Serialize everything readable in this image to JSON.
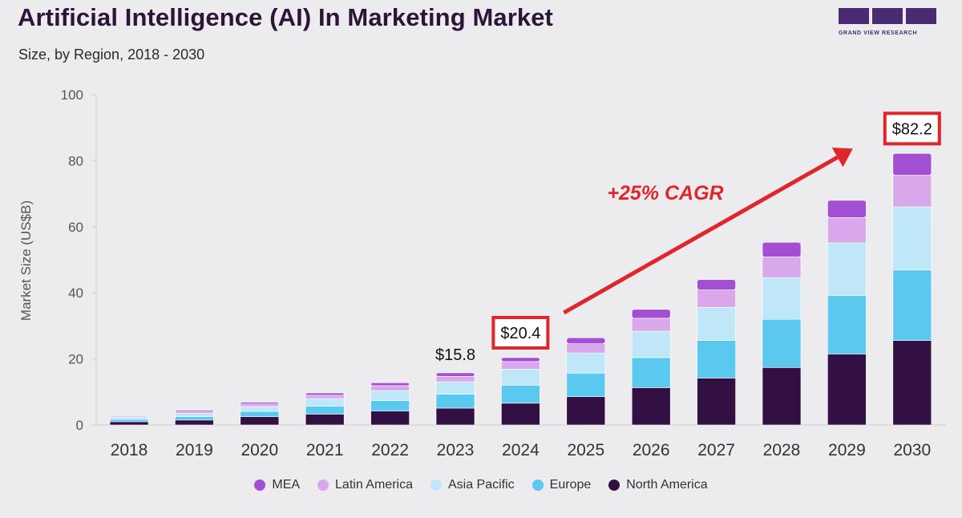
{
  "header": {
    "title": "Artificial Intelligence (AI) In Marketing Market",
    "subtitle": "Size, by Region, 2018 - 2030"
  },
  "logo": {
    "text": "GRAND VIEW RESEARCH",
    "color": "#4a2a73"
  },
  "chart_data": {
    "type": "bar",
    "stacked": true,
    "ylabel": "Market Size (US$B)",
    "ylim": [
      0,
      100
    ],
    "yticks": [
      0,
      20,
      40,
      60,
      80,
      100
    ],
    "grid": false,
    "legend_position": "bottom",
    "categories": [
      "2018",
      "2019",
      "2020",
      "2021",
      "2022",
      "2023",
      "2024",
      "2025",
      "2026",
      "2027",
      "2028",
      "2029",
      "2030"
    ],
    "series": [
      {
        "name": "North America",
        "color": "#321043",
        "values": [
          1.0,
          1.5,
          2.5,
          3.3,
          4.2,
          5.1,
          6.6,
          8.6,
          11.3,
          14.2,
          17.4,
          21.5,
          25.6
        ]
      },
      {
        "name": "Europe",
        "color": "#5bc8f0",
        "values": [
          0.7,
          1.0,
          1.6,
          2.4,
          3.2,
          4.2,
          5.4,
          7.1,
          9.1,
          11.4,
          14.6,
          17.7,
          21.3
        ]
      },
      {
        "name": "Asia Pacific",
        "color": "#bfe7f7",
        "values": [
          0.7,
          1.0,
          1.5,
          2.3,
          3.0,
          3.8,
          4.9,
          6.1,
          8.0,
          10.0,
          12.6,
          15.9,
          19.1
        ]
      },
      {
        "name": "Latin America",
        "color": "#d9a8ea",
        "values": [
          0.3,
          0.5,
          0.8,
          1.0,
          1.5,
          1.6,
          2.3,
          2.8,
          3.9,
          5.3,
          6.3,
          7.7,
          9.6
        ]
      },
      {
        "name": "MEA",
        "color": "#a24fd4",
        "values": [
          0.2,
          0.4,
          0.5,
          0.7,
          0.9,
          1.1,
          1.2,
          1.8,
          2.7,
          3.1,
          4.4,
          5.2,
          6.6
        ]
      }
    ],
    "annotations": [
      {
        "category": "2023",
        "text": "$15.8",
        "boxed": false
      },
      {
        "category": "2024",
        "text": "$20.4",
        "boxed": true
      },
      {
        "category": "2030",
        "text": "$82.2",
        "boxed": true
      }
    ],
    "cagr_label": "+25% CAGR",
    "highlight_color": "#e0262a"
  }
}
